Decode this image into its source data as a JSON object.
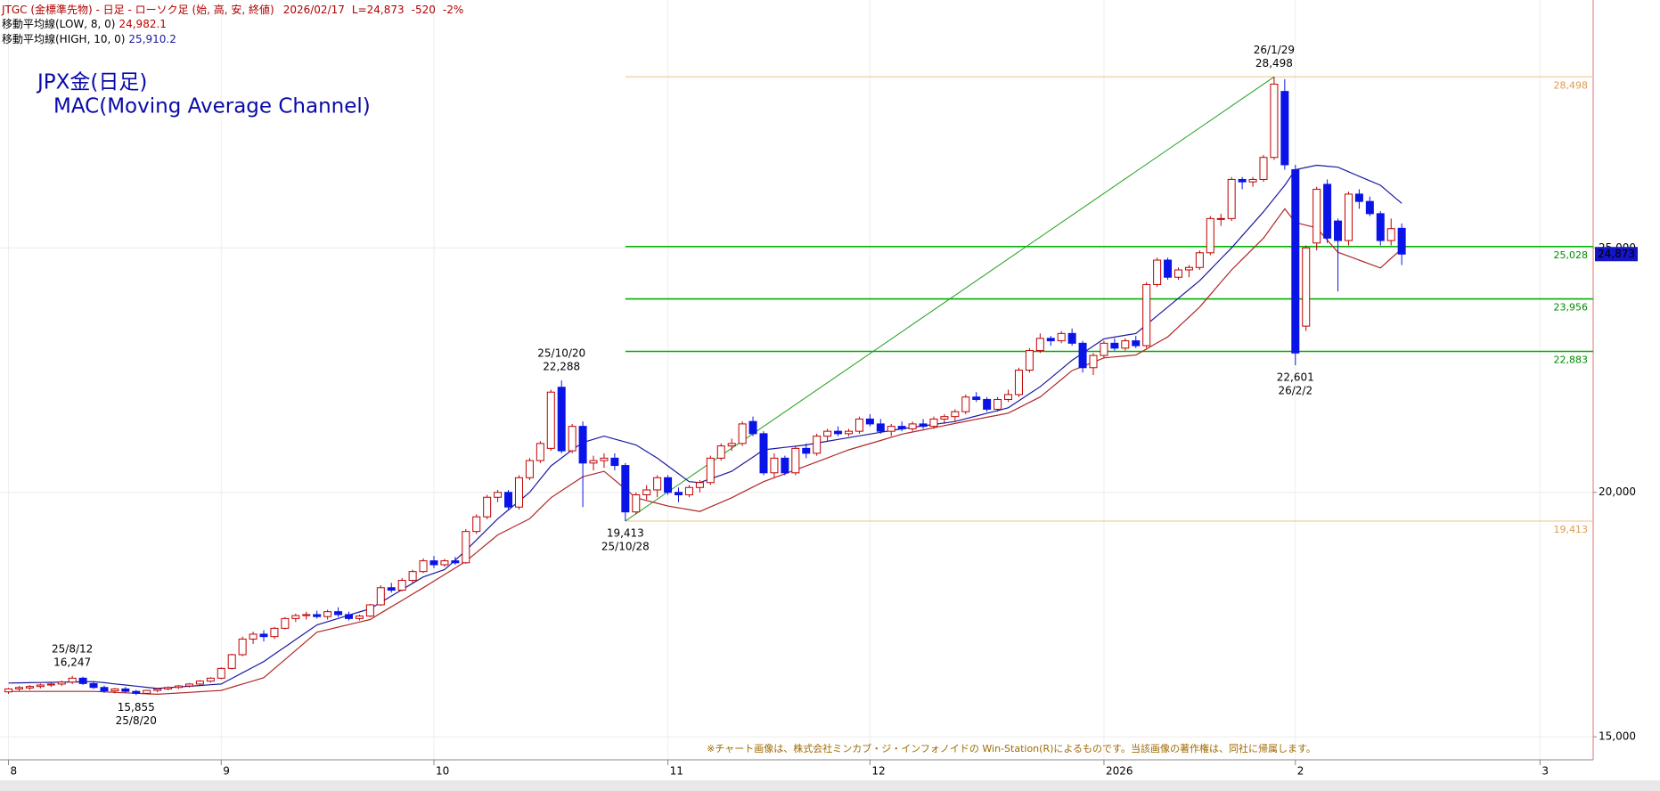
{
  "chart_data": {
    "type": "candlestick",
    "header": "JTGC (金標準先物) - 日足 - ローソク足 (始, 高, 安, 終値)",
    "date": "2026/02/17",
    "last_text": "L=24,873",
    "change_text": "-520",
    "change_pct_text": "-2%",
    "title": "JPX金(日足)",
    "subtitle": "MAC(Moving Average Channel)",
    "up_color": "#c00000",
    "down_color": "#0a14e6",
    "open": [
      15920,
      15980,
      16000,
      16030,
      16060,
      16080,
      16120,
      16200,
      16090,
      16010,
      15940,
      15980,
      15930,
      15890,
      15950,
      15980,
      16010,
      16040,
      16080,
      16140,
      16200,
      16400,
      16680,
      17000,
      17100,
      17050,
      17220,
      17420,
      17480,
      17500,
      17460,
      17560,
      17500,
      17420,
      17470,
      17700,
      18050,
      18000,
      18200,
      18380,
      18600,
      18520,
      18600,
      18560,
      19200,
      19500,
      19900,
      20000,
      19700,
      20300,
      20650,
      20900,
      22150,
      20850,
      21350,
      20600,
      20650,
      20700,
      20550,
      19600,
      19950,
      20050,
      20300,
      20000,
      19950,
      20100,
      20200,
      20700,
      20950,
      21000,
      21450,
      21200,
      20400,
      20700,
      20400,
      20900,
      20800,
      21150,
      21250,
      21200,
      21250,
      21500,
      21400,
      21250,
      21350,
      21300,
      21400,
      21350,
      21500,
      21550,
      21650,
      21950,
      21900,
      21700,
      21900,
      22000,
      22500,
      22900,
      23150,
      23100,
      23250,
      23050,
      22550,
      22800,
      23050,
      22950,
      23100,
      23000,
      24250,
      24750,
      24400,
      24550,
      24600,
      24900,
      25600,
      25600,
      26400,
      26350,
      26400,
      26850,
      28200,
      26600,
      23400,
      25100,
      26300,
      25550,
      25150,
      26100,
      25950,
      25700,
      25150,
      25400
    ],
    "high": [
      16000,
      16040,
      16060,
      16090,
      16120,
      16150,
      16247,
      16230,
      16120,
      16050,
      16000,
      16020,
      15960,
      15960,
      16000,
      16030,
      16060,
      16100,
      16160,
      16220,
      16420,
      16700,
      17050,
      17150,
      17180,
      17250,
      17450,
      17520,
      17560,
      17580,
      17600,
      17650,
      17560,
      17500,
      17720,
      18100,
      18150,
      18250,
      18420,
      18650,
      18700,
      18640,
      18680,
      19250,
      19550,
      19950,
      20050,
      20050,
      20350,
      20700,
      21050,
      22100,
      22288,
      21400,
      21450,
      20750,
      20800,
      20800,
      20600,
      20000,
      20150,
      20350,
      20350,
      20100,
      20150,
      20250,
      20750,
      21000,
      21100,
      21450,
      21550,
      21250,
      20800,
      20750,
      20950,
      21000,
      21200,
      21300,
      21350,
      21300,
      21550,
      21600,
      21500,
      21400,
      21450,
      21450,
      21500,
      21550,
      21600,
      21700,
      22000,
      22050,
      21950,
      21950,
      22100,
      22550,
      22950,
      23250,
      23200,
      23300,
      23350,
      23100,
      22850,
      23100,
      23150,
      23150,
      23200,
      24300,
      24800,
      24800,
      24600,
      24650,
      24950,
      25650,
      25700,
      26450,
      26450,
      26450,
      26900,
      28498,
      28450,
      26700,
      25050,
      26250,
      26400,
      25600,
      26150,
      26200,
      26050,
      25750,
      25600,
      25500
    ],
    "low": [
      15880,
      15940,
      15960,
      15990,
      16020,
      16040,
      16080,
      16060,
      15980,
      15900,
      15890,
      15900,
      15855,
      15870,
      15910,
      15950,
      15980,
      16010,
      16060,
      16110,
      16180,
      16380,
      16650,
      16900,
      16950,
      17000,
      17200,
      17350,
      17400,
      17420,
      17400,
      17450,
      17380,
      17380,
      17450,
      17680,
      17950,
      17980,
      18150,
      18350,
      18450,
      18480,
      18520,
      18540,
      19150,
      19450,
      19800,
      19650,
      19650,
      20250,
      20600,
      20850,
      20800,
      20800,
      19700,
      20450,
      20500,
      20450,
      19413,
      19550,
      19850,
      19900,
      19950,
      19800,
      19900,
      20000,
      20150,
      20650,
      20850,
      20950,
      21150,
      20350,
      20300,
      20350,
      20350,
      20700,
      20750,
      21050,
      21150,
      21150,
      21200,
      21350,
      21200,
      21150,
      21250,
      21250,
      21300,
      21300,
      21400,
      21450,
      21600,
      21850,
      21650,
      21650,
      21850,
      21950,
      22450,
      22850,
      23000,
      23050,
      23000,
      22450,
      22400,
      22750,
      22900,
      22900,
      22950,
      22950,
      24200,
      24350,
      24350,
      24400,
      24550,
      24850,
      25450,
      25550,
      26200,
      26250,
      26350,
      26800,
      26600,
      22601,
      23300,
      24950,
      25100,
      24110,
      25050,
      25800,
      25650,
      25050,
      25050,
      24650
    ],
    "close": [
      15980,
      16010,
      16030,
      16060,
      16080,
      16120,
      16200,
      16090,
      16010,
      15940,
      15980,
      15930,
      15890,
      15950,
      15980,
      16010,
      16040,
      16080,
      16140,
      16200,
      16400,
      16680,
      17000,
      17100,
      17050,
      17220,
      17420,
      17480,
      17500,
      17460,
      17560,
      17500,
      17420,
      17470,
      17700,
      18050,
      18000,
      18200,
      18380,
      18600,
      18520,
      18600,
      18560,
      19200,
      19500,
      19900,
      20000,
      19700,
      20300,
      20650,
      21000,
      22050,
      20850,
      21350,
      20600,
      20650,
      20700,
      20550,
      19600,
      19950,
      20050,
      20300,
      20000,
      19950,
      20100,
      20200,
      20700,
      20950,
      21000,
      21400,
      21200,
      20400,
      20700,
      20400,
      20900,
      20800,
      21150,
      21250,
      21200,
      21250,
      21500,
      21400,
      21250,
      21350,
      21300,
      21400,
      21350,
      21500,
      21550,
      21650,
      21950,
      21900,
      21700,
      21900,
      22000,
      22500,
      22900,
      23150,
      23100,
      23250,
      23050,
      22550,
      22800,
      23050,
      22950,
      23100,
      23000,
      24250,
      24750,
      24400,
      24550,
      24600,
      24900,
      25600,
      25600,
      26400,
      26350,
      26400,
      26850,
      28350,
      26700,
      22850,
      25000,
      26200,
      25200,
      25150,
      26100,
      25950,
      25700,
      25150,
      25393,
      24873
    ],
    "series": [
      {
        "name": "移動平均線(LOW, 8, 0)",
        "color": "#b02828",
        "value_label": "24,982.1",
        "values": [
          15930,
          15930,
          15930,
          15930,
          15930,
          15930,
          15930,
          15930,
          15930,
          15920,
          15910,
          15900,
          15890,
          15880,
          15870,
          15883,
          15897,
          15910,
          15923,
          15937,
          15950,
          16015,
          16080,
          16145,
          16210,
          16396,
          16582,
          16768,
          16954,
          17140,
          17192,
          17244,
          17296,
          17348,
          17400,
          17530,
          17660,
          17790,
          17920,
          18050,
          18185,
          18320,
          18455,
          18590,
          18770,
          18950,
          19130,
          19240,
          19350,
          19460,
          19675,
          19890,
          20033,
          20177,
          20320,
          20375,
          20430,
          20250,
          20070,
          19890,
          19833,
          19777,
          19720,
          19683,
          19647,
          19610,
          19703,
          19797,
          19890,
          20000,
          20110,
          20220,
          20300,
          20380,
          20460,
          20540,
          20623,
          20705,
          20788,
          20870,
          20934,
          20998,
          21062,
          21126,
          21190,
          21234,
          21278,
          21322,
          21366,
          21410,
          21452,
          21494,
          21536,
          21578,
          21620,
          21730,
          21840,
          21950,
          22130,
          22310,
          22490,
          22577,
          22663,
          22750,
          22770,
          22790,
          22810,
          22933,
          23057,
          23180,
          23383,
          23587,
          23790,
          24043,
          24297,
          24550,
          24767,
          24983,
          25200,
          25500,
          25800,
          25520,
          25465,
          25410,
          25160,
          24910,
          24830,
          24750,
          24670,
          24590,
          24786,
          24982.1
        ]
      },
      {
        "name": "移動平均線(HIGH, 10, 0)",
        "color": "#1a1aa0",
        "value_label": "25,910.2",
        "values": [
          16100,
          16104,
          16108,
          16111,
          16115,
          16119,
          16122,
          16126,
          16130,
          16107,
          16083,
          16060,
          16037,
          16013,
          15990,
          16005,
          16020,
          16035,
          16050,
          16065,
          16080,
          16195,
          16310,
          16425,
          16540,
          16690,
          16840,
          16990,
          17140,
          17290,
          17356,
          17422,
          17488,
          17554,
          17620,
          17750,
          17880,
          18010,
          18140,
          18270,
          18345,
          18420,
          18615,
          18810,
          19027,
          19243,
          19460,
          19640,
          19820,
          20000,
          20270,
          20540,
          20705,
          20870,
          21020,
          21085,
          21150,
          21090,
          21030,
          20970,
          20835,
          20700,
          20540,
          20380,
          20220,
          20200,
          20277,
          20353,
          20430,
          20577,
          20723,
          20870,
          20895,
          20920,
          20945,
          20970,
          21008,
          21045,
          21083,
          21120,
          21156,
          21192,
          21228,
          21264,
          21300,
          21330,
          21360,
          21390,
          21420,
          21450,
          21506,
          21562,
          21618,
          21674,
          21730,
          21873,
          22017,
          22160,
          22340,
          22520,
          22700,
          22847,
          22993,
          23140,
          23177,
          23213,
          23250,
          23430,
          23610,
          23790,
          23970,
          24150,
          24330,
          24553,
          24777,
          25000,
          25247,
          25493,
          25740,
          26010,
          26280,
          26600,
          26645,
          26690,
          26670,
          26650,
          26558,
          26465,
          26373,
          26280,
          26095,
          25910.2
        ]
      }
    ],
    "levels": [
      {
        "value": 28498,
        "label": "28,498",
        "color": "#f0c080",
        "text_color": "#e09a50"
      },
      {
        "value": 25028,
        "label": "25,028",
        "color": "#00b000",
        "text_color": "#008a00"
      },
      {
        "value": 23956,
        "label": "23,956",
        "color": "#00b000",
        "text_color": "#008a00"
      },
      {
        "value": 22883,
        "label": "22,883",
        "color": "#00b000",
        "text_color": "#008a00"
      },
      {
        "value": 19413,
        "label": "19,413",
        "color": "#f0c080",
        "text_color": "#e09a50"
      }
    ],
    "trendline": {
      "from": 19413,
      "to": 28498,
      "color": "#20a020"
    },
    "annotations": [
      {
        "value": 28498,
        "label": "28,498",
        "date": "26/1/29"
      },
      {
        "value": 22288,
        "label": "22,288",
        "date": "25/10/20"
      },
      {
        "value": 19413,
        "label": "19,413",
        "date": "25/10/28"
      },
      {
        "value": 22601,
        "label": "22,601",
        "date": "26/2/2"
      },
      {
        "value": 16247,
        "label": "16,247",
        "date": "25/8/12"
      },
      {
        "value": 15855,
        "label": "15,855",
        "date": "25/8/20"
      }
    ],
    "last": {
      "value": 24873,
      "label": "24,873"
    },
    "xlim": [
      -0.8,
      149
    ],
    "ylim": [
      14530,
      30070
    ],
    "xticks": [
      {
        "value": 0,
        "label": "8"
      },
      {
        "value": 20,
        "label": "9"
      },
      {
        "value": 40,
        "label": "10"
      },
      {
        "value": 62,
        "label": "11"
      },
      {
        "value": 81,
        "label": "12"
      },
      {
        "value": 103,
        "label": "2026"
      },
      {
        "value": 121,
        "label": "2"
      },
      {
        "value": 144,
        "label": "3"
      }
    ],
    "yticks": [
      {
        "value": 15000,
        "label": "15,000"
      },
      {
        "value": 20000,
        "label": "20,000"
      },
      {
        "value": 25000,
        "label": "25,000"
      }
    ],
    "grid": true,
    "note": "※チャート画像は、株式会社ミンカブ・ジ・インフォノイドの Win-Station(R)によるものです。当該画像の著作権は、同社に帰属します。"
  }
}
